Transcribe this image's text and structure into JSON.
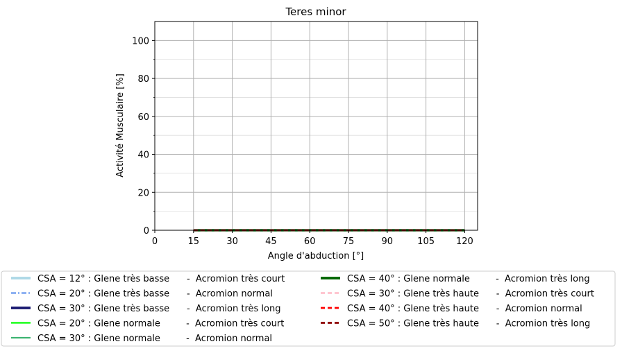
{
  "chart_data": {
    "type": "line",
    "title": "Teres minor",
    "xlabel": "Angle d'abduction [°]",
    "ylabel": "Activité Musculaire [%]",
    "xlim": [
      0,
      125
    ],
    "ylim": [
      0,
      110
    ],
    "xticks": [
      0,
      15,
      30,
      45,
      60,
      75,
      90,
      105,
      120
    ],
    "yticks": [
      0,
      20,
      40,
      60,
      80,
      100
    ],
    "grid": true,
    "legend_position": "below",
    "x": [
      15,
      120
    ],
    "series": [
      {
        "name": "CSA = 12° : Glene très basse      -  Acromion très court",
        "color": "#add8e6",
        "style": "solid-thick",
        "values": [
          0,
          0
        ]
      },
      {
        "name": "CSA = 20° : Glene très basse      -  Acromion normal",
        "color": "#6495ed",
        "style": "dashdot",
        "values": [
          0,
          0
        ]
      },
      {
        "name": "CSA = 30° : Glene très basse      -  Acromion très long",
        "color": "#191970",
        "style": "solid-thick",
        "values": [
          0,
          0
        ]
      },
      {
        "name": "CSA = 20° : Glene normale         -  Acromion très court",
        "color": "#00ff00",
        "style": "solid",
        "values": [
          0,
          0
        ]
      },
      {
        "name": "CSA = 30° : Glene normale         -  Acromion normal",
        "color": "#3cb371",
        "style": "solid",
        "values": [
          0,
          0
        ]
      },
      {
        "name": "CSA = 40° : Glene normale         -  Acromion très long",
        "color": "#006400",
        "style": "solid-thick",
        "values": [
          0,
          0
        ]
      },
      {
        "name": "CSA = 30° : Glene très haute      -  Acromion très court",
        "color": "#ffc0cb",
        "style": "dashed",
        "values": [
          0,
          0
        ]
      },
      {
        "name": "CSA = 40° : Glene très haute      -  Acromion normal",
        "color": "#ff0000",
        "style": "dashed",
        "values": [
          0,
          0
        ]
      },
      {
        "name": "CSA = 50° : Glene très haute      -  Acromion très long",
        "color": "#8b0000",
        "style": "dashed",
        "values": [
          0,
          0
        ]
      }
    ]
  }
}
